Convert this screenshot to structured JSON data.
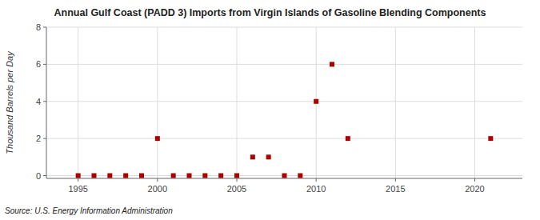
{
  "chart_data": {
    "type": "scatter",
    "title": "Annual Gulf Coast (PADD 3) Imports from Virgin Islands of Gasoline Blending Components",
    "y_label": "Thousand Barrels per Day",
    "annotations": [
      "Source: U.S. Energy Information Administration"
    ],
    "x": [
      1995,
      1996,
      1997,
      1998,
      1999,
      2000,
      2001,
      2002,
      2003,
      2004,
      2005,
      2006,
      2007,
      2008,
      2009,
      2010,
      2011,
      2012,
      2021
    ],
    "values": [
      0,
      0,
      0,
      0,
      0,
      2,
      0,
      0,
      0,
      0,
      0,
      1,
      1,
      0,
      0,
      4,
      6,
      2,
      2
    ],
    "color": "#aa0000",
    "marker": "square",
    "xlim": [
      1993,
      2023
    ],
    "ylim": [
      -0.15,
      8
    ],
    "xticks": [
      1995,
      2000,
      2005,
      2010,
      2015,
      2020
    ],
    "yticks": [
      0,
      2,
      4,
      6,
      8
    ],
    "grid": true
  }
}
